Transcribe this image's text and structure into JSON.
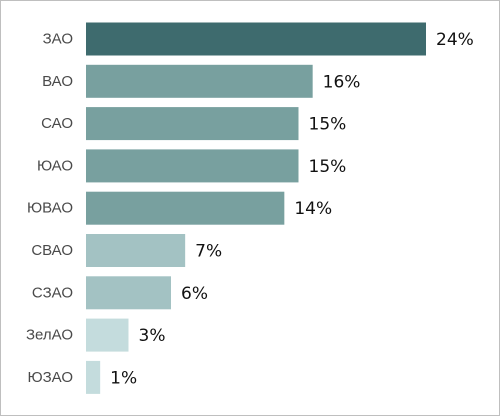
{
  "chart_data": {
    "type": "bar",
    "orientation": "horizontal",
    "categories": [
      "ЗАО",
      "ВАО",
      "САО",
      "ЮАО",
      "ЮВАО",
      "СВАО",
      "СЗАО",
      "ЗелАО",
      "ЮЗАО"
    ],
    "values": [
      24,
      16,
      15,
      15,
      14,
      7,
      6,
      3,
      1
    ],
    "value_labels": [
      "24%",
      "16%",
      "15%",
      "15%",
      "14%",
      "7%",
      "6%",
      "3%",
      "1%"
    ],
    "unit": "%",
    "xlim": [
      0,
      24
    ],
    "grid": false,
    "legend": "none",
    "bar_colors": [
      "#3e6b6e",
      "#78a09f",
      "#78a09f",
      "#78a09f",
      "#78a09f",
      "#a3c2c3",
      "#a3c2c3",
      "#c4dcdd",
      "#c4dcdd"
    ]
  }
}
